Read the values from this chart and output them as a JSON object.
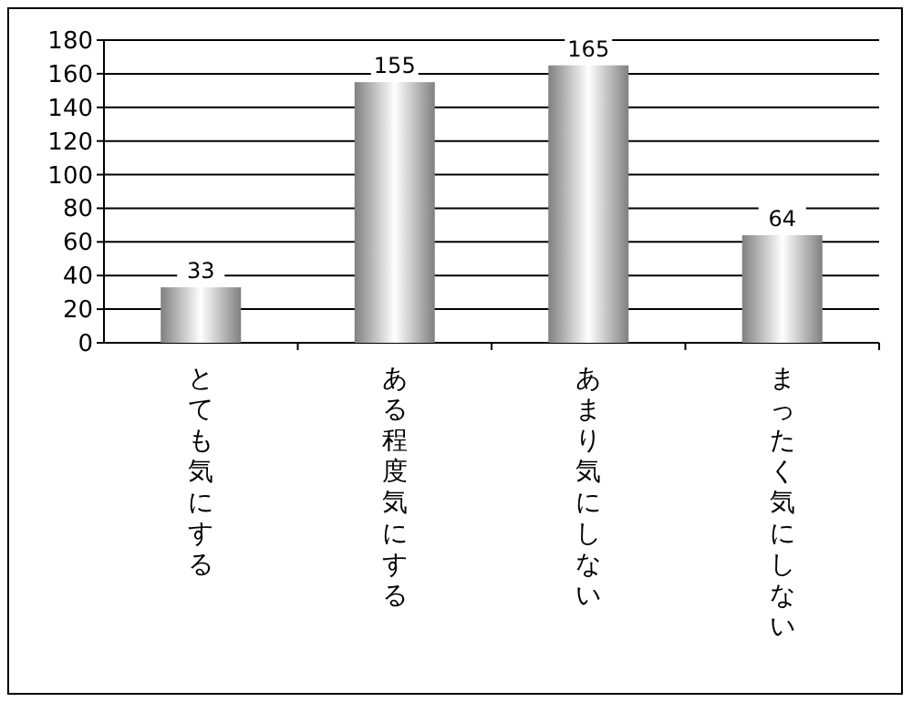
{
  "chart_data": {
    "type": "bar",
    "categories": [
      "とても気にする",
      "ある程度気にする",
      "あまり気にしない",
      "まったく気にしない"
    ],
    "values": [
      33,
      155,
      165,
      64
    ],
    "color": "#808080",
    "ylim": [
      0,
      180
    ],
    "yticks": [
      0,
      20,
      40,
      60,
      80,
      100,
      120,
      140,
      160,
      180
    ],
    "grid": "y",
    "data_labels": true
  }
}
